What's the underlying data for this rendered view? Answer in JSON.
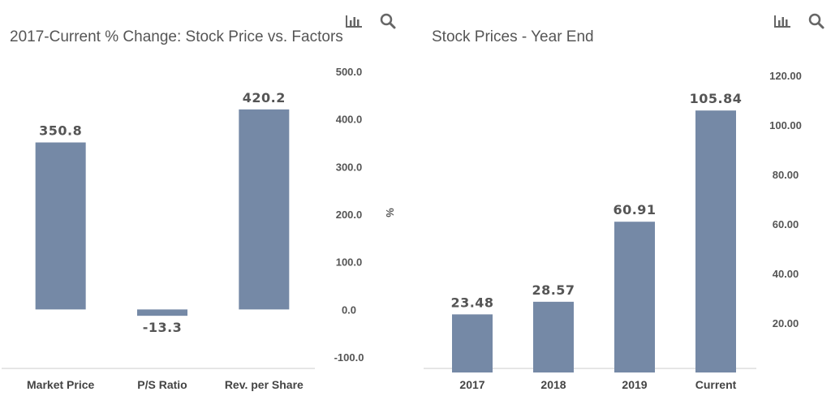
{
  "icons": {
    "chart_toggle": "bar-chart-icon",
    "zoom": "search-icon"
  },
  "chart_data": [
    {
      "type": "bar",
      "title": "2017-Current % Change: Stock Price vs. Factors",
      "categories": [
        "Market Price",
        "P/S Ratio",
        "Rev. per Share"
      ],
      "values": [
        350.8,
        -13.3,
        420.2
      ],
      "value_labels": [
        "350.8",
        "-13.3",
        "420.2"
      ],
      "ylabel": "%",
      "ylim": [
        -100,
        500
      ],
      "yticks": [
        "500.0",
        "400.0",
        "300.0",
        "200.0",
        "100.0",
        "0.0",
        "-100.0"
      ],
      "ytick_values": [
        500,
        400,
        300,
        200,
        100,
        0,
        -100
      ],
      "y_axis_side": "right",
      "color": "#7589a6",
      "grid": false
    },
    {
      "type": "bar",
      "title": "Stock Prices - Year End",
      "categories": [
        "2017",
        "2018",
        "2019",
        "Current"
      ],
      "values": [
        23.48,
        28.57,
        60.91,
        105.84
      ],
      "value_labels": [
        "23.48",
        "28.57",
        "60.91",
        "105.84"
      ],
      "ylabel": "",
      "ylim": [
        0,
        120
      ],
      "yticks": [
        "120.00",
        "100.00",
        "80.00",
        "60.00",
        "40.00",
        "20.00"
      ],
      "ytick_values": [
        120,
        100,
        80,
        60,
        40,
        20
      ],
      "y_axis_side": "right",
      "color": "#7589a6",
      "grid": false
    }
  ]
}
